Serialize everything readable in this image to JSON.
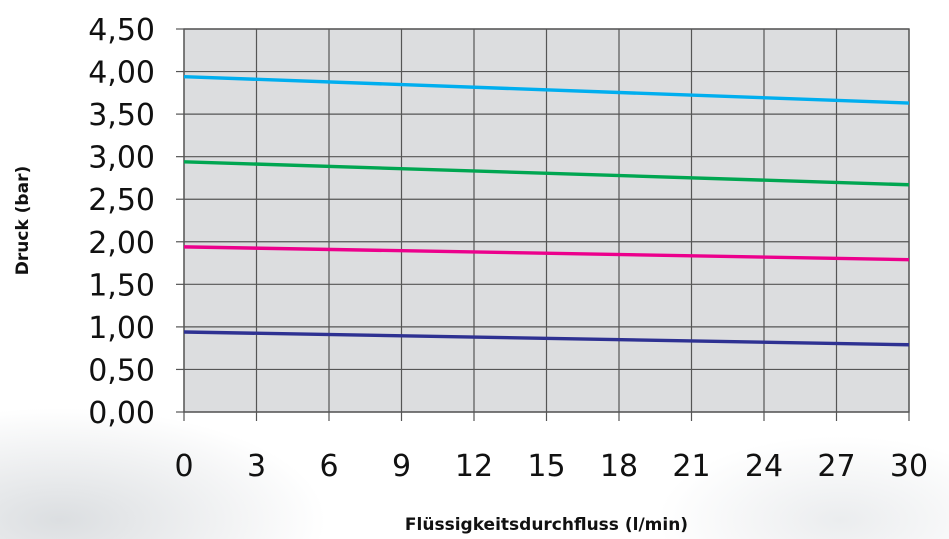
{
  "chart_data": {
    "type": "line",
    "title": "",
    "xlabel": "Flüssigkeitsdurchfluss (l/min)",
    "ylabel": "Druck (bar)",
    "xlim": [
      0,
      30
    ],
    "ylim": [
      0,
      4.5
    ],
    "x_ticks": [
      "0",
      "3",
      "6",
      "9",
      "12",
      "15",
      "18",
      "21",
      "24",
      "27",
      "30"
    ],
    "y_ticks": [
      "0,00",
      "0,50",
      "1,00",
      "1,50",
      "2,00",
      "2,50",
      "3,00",
      "3,50",
      "4,00",
      "4,50"
    ],
    "grid": true,
    "legend": "none",
    "x": [
      0,
      30
    ],
    "series": [
      {
        "color": "#00aeef",
        "values": [
          3.94,
          3.63
        ]
      },
      {
        "color": "#00a651",
        "values": [
          2.94,
          2.67
        ]
      },
      {
        "color": "#ec008c",
        "values": [
          1.94,
          1.79
        ]
      },
      {
        "color": "#2e3192",
        "values": [
          0.94,
          0.79
        ]
      }
    ],
    "plot_background": "#dcdddf",
    "grid_color": "#555555"
  }
}
